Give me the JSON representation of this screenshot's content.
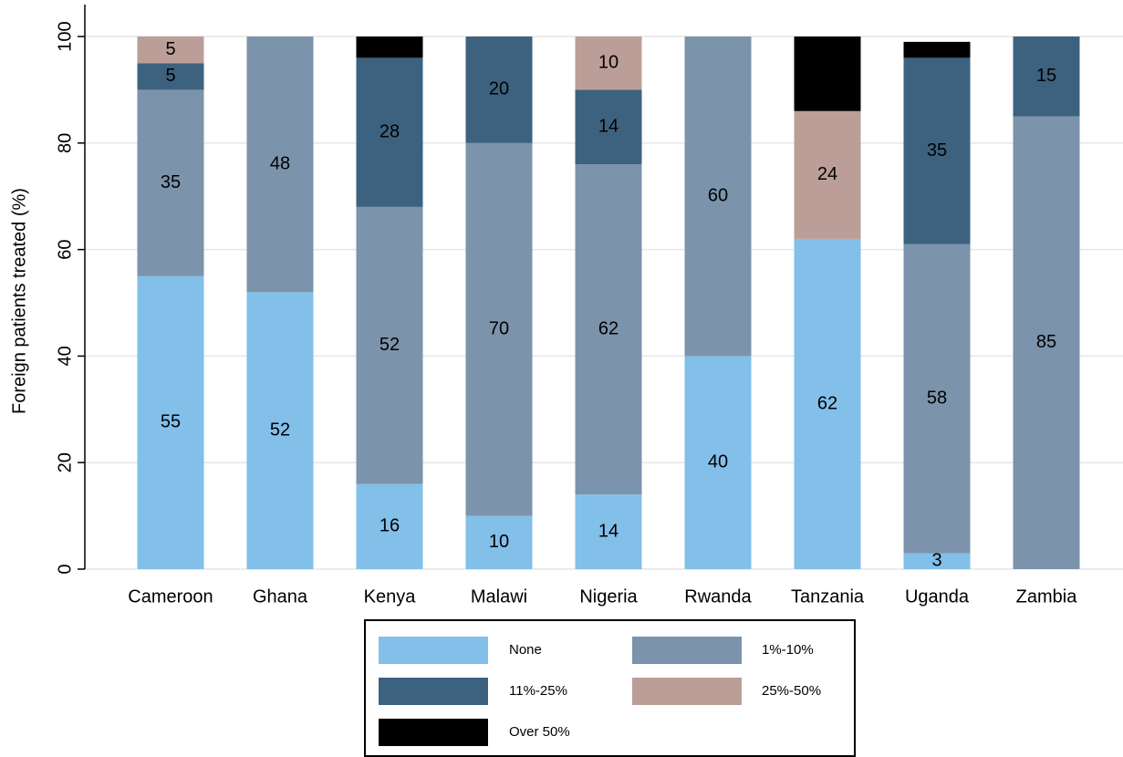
{
  "chart_data": {
    "type": "stacked_bar",
    "y_axis_label": "Foreign patients treated (%)",
    "categories": [
      "Cameroon",
      "Ghana",
      "Kenya",
      "Malawi",
      "Nigeria",
      "Rwanda",
      "Tanzania",
      "Uganda",
      "Zambia"
    ],
    "series": [
      {
        "name": "None",
        "color": "#82bfe9",
        "values": [
          55,
          52,
          16,
          10,
          14,
          40,
          62,
          3,
          0
        ]
      },
      {
        "name": "1%-10%",
        "color": "#7b93ab",
        "values": [
          35,
          48,
          52,
          70,
          62,
          60,
          0,
          58,
          85
        ]
      },
      {
        "name": "11%-25%",
        "color": "#3d6280",
        "values": [
          5,
          0,
          28,
          20,
          14,
          0,
          0,
          35,
          15
        ]
      },
      {
        "name": "25%-50%",
        "color": "#bc9e98",
        "values": [
          5,
          0,
          0,
          0,
          10,
          0,
          24,
          0,
          0
        ]
      },
      {
        "name": "Over 50%",
        "color": "#000000",
        "values": [
          0,
          0,
          4,
          0,
          0,
          0,
          14,
          3,
          0
        ]
      }
    ],
    "ylim": [
      0,
      106
    ],
    "yticks": [
      0,
      20,
      40,
      60,
      80,
      100
    ],
    "grid": true
  }
}
